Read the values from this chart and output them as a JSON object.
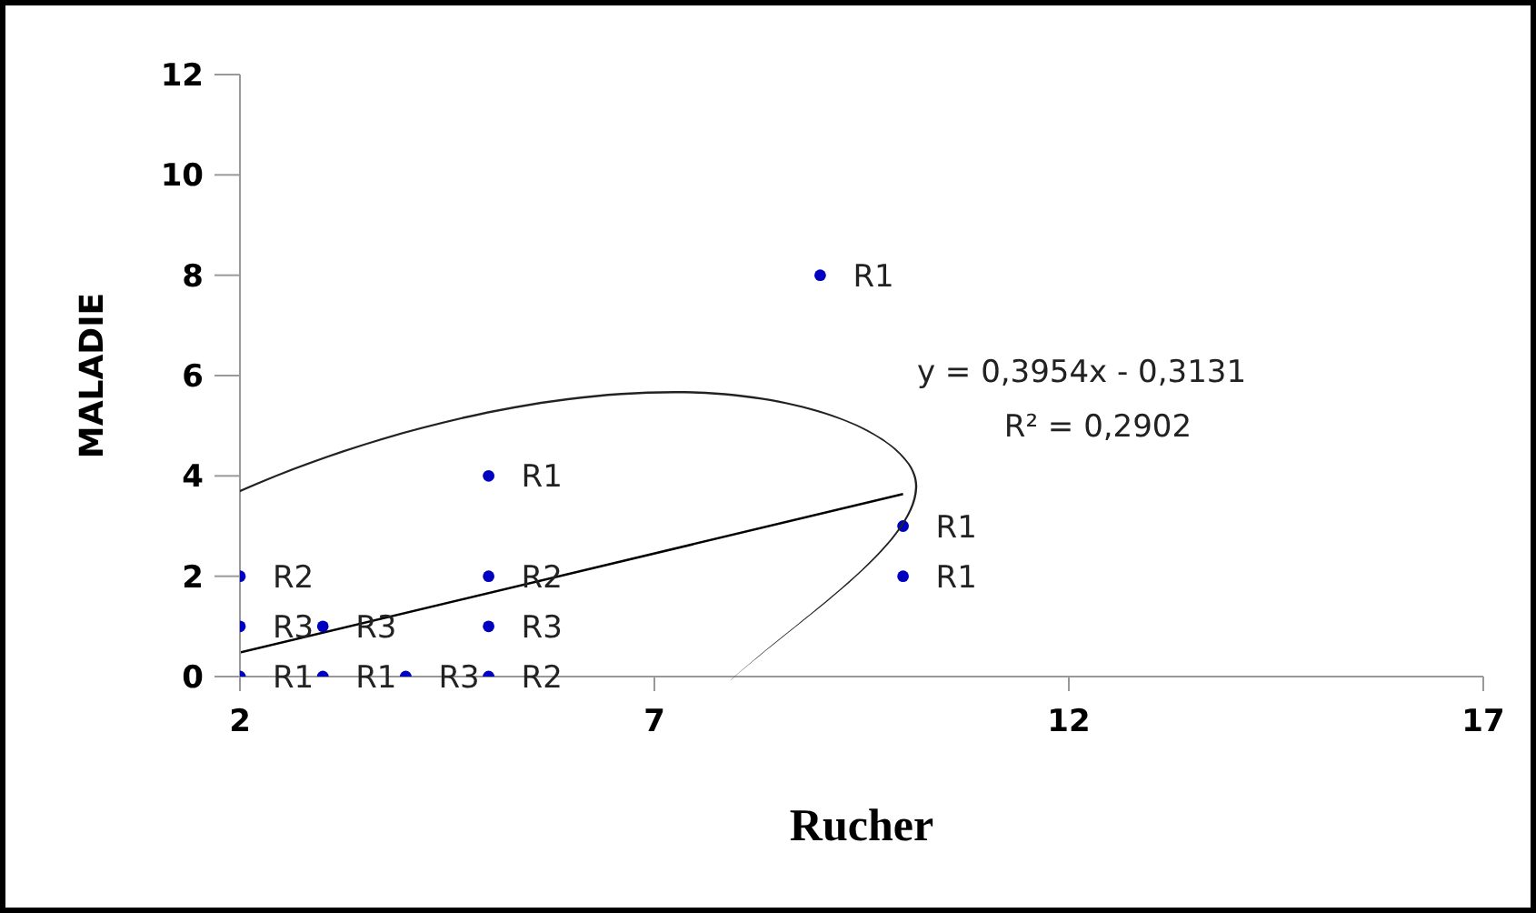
{
  "chart_data": {
    "type": "scatter",
    "xlabel": "Rucher",
    "ylabel": "MALADIE",
    "xlim": [
      2,
      17
    ],
    "xticks": [
      2,
      7,
      12,
      17
    ],
    "ylim": [
      0,
      12
    ],
    "yticks": [
      0,
      2,
      4,
      6,
      8,
      10,
      12
    ],
    "grid": false,
    "annotations": [
      "y = 0,3954x - 0,3131",
      "R² = 0,2902"
    ],
    "series": [
      {
        "type": "scatter",
        "color": "#0000c0",
        "x": [
          2,
          2,
          2,
          3,
          3,
          4,
          5,
          5,
          5,
          5,
          9,
          10,
          10
        ],
        "values": [
          0,
          1,
          2,
          1,
          0,
          0,
          0,
          1,
          2,
          4,
          8,
          3,
          2
        ],
        "value_labels": [
          "R1",
          "R3",
          "R2",
          "R3",
          "R1",
          "R3",
          "R2",
          "R3",
          "R2",
          "R1",
          "R1",
          "R1",
          "R1"
        ]
      },
      {
        "type": "line",
        "color": "#000000",
        "x": [
          2,
          10
        ],
        "values": [
          0.48,
          3.64
        ]
      }
    ]
  }
}
